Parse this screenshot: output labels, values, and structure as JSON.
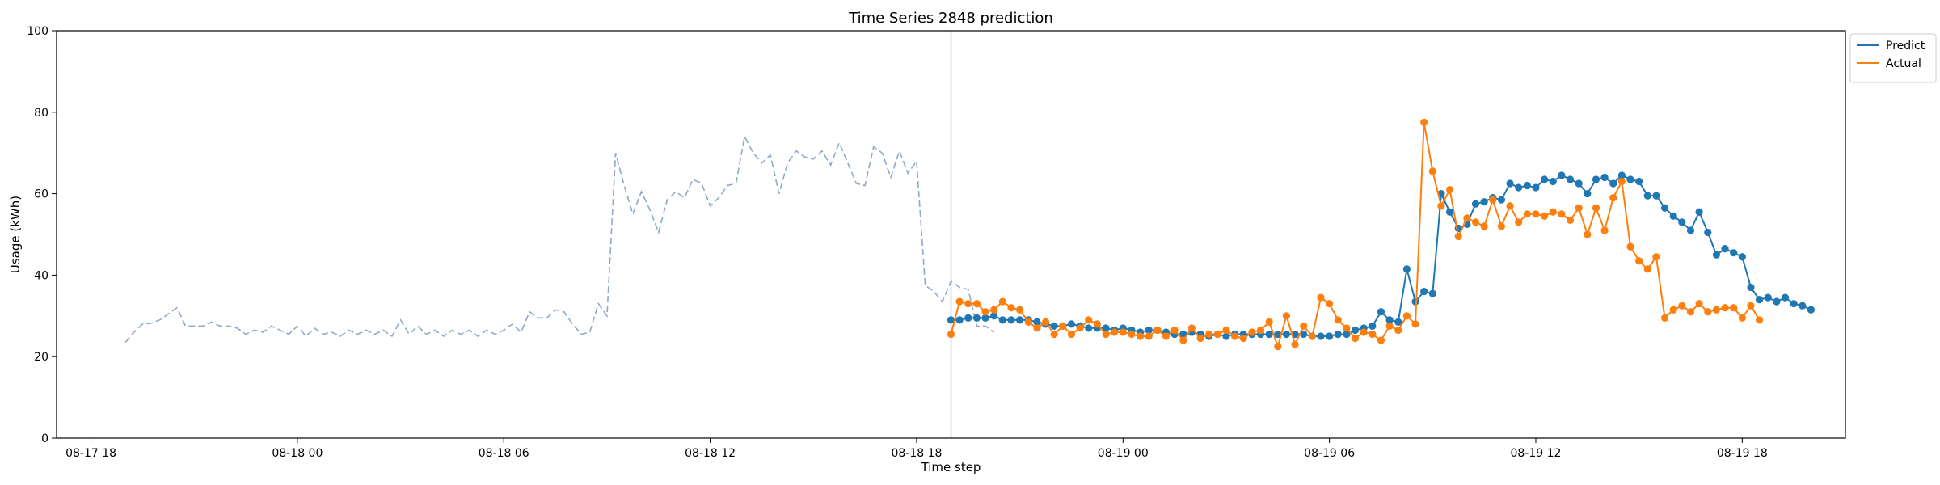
{
  "chart_data": {
    "type": "line",
    "title": "Time Series 2848 prediction",
    "xlabel": "Time step",
    "ylabel": "Usage (kWh)",
    "ylim": [
      0,
      100
    ],
    "yticks": [
      0,
      20,
      40,
      60,
      80,
      100
    ],
    "xlim": [
      "2025-08-17 17:00",
      "2025-08-19 21:00"
    ],
    "xticks": [
      {
        "t": "2025-08-17 18:00",
        "label": "08-17 18"
      },
      {
        "t": "2025-08-18 00:00",
        "label": "08-18 00"
      },
      {
        "t": "2025-08-18 06:00",
        "label": "08-18 06"
      },
      {
        "t": "2025-08-18 12:00",
        "label": "08-18 12"
      },
      {
        "t": "2025-08-18 18:00",
        "label": "08-18 18"
      },
      {
        "t": "2025-08-19 00:00",
        "label": "08-19 00"
      },
      {
        "t": "2025-08-19 06:00",
        "label": "08-19 06"
      },
      {
        "t": "2025-08-19 12:00",
        "label": "08-19 12"
      },
      {
        "t": "2025-08-19 18:00",
        "label": "08-19 18"
      }
    ],
    "forecast_start": "2025-08-18 19:00",
    "grid": false,
    "legend_position": "upper-right-outside",
    "series": [
      {
        "role": "history",
        "style": "dashed",
        "color": "#8fa9c8",
        "start": "2025-08-17 19:00",
        "step_minutes": 15,
        "values": [
          23.5,
          26.0,
          28.0,
          28.2,
          29.0,
          30.5,
          32.0,
          27.5,
          27.5,
          27.5,
          28.5,
          27.5,
          27.5,
          27.0,
          25.5,
          26.5,
          26.0,
          27.5,
          26.5,
          25.5,
          27.5,
          25.0,
          27.0,
          25.5,
          26.0,
          25.0,
          26.5,
          25.5,
          26.5,
          25.5,
          26.5,
          25.0,
          29.0,
          25.5,
          27.5,
          25.5,
          26.5,
          25.0,
          26.5,
          25.5,
          26.5,
          25.0,
          26.5,
          25.5,
          26.5,
          28.0,
          26.0,
          31.0,
          29.5,
          29.5,
          31.5,
          31.0,
          28.0,
          25.5,
          26.0,
          33.0,
          30.0,
          70.0,
          62.0,
          55.0,
          60.5,
          56.0,
          50.5,
          58.5,
          60.5,
          59.0,
          63.5,
          62.5,
          57.0,
          59.0,
          62.0,
          62.5,
          74.0,
          70.0,
          67.5,
          69.5,
          60.0,
          67.5,
          70.5,
          69.0,
          68.5,
          70.5,
          67.0,
          72.5,
          67.5,
          62.5,
          62.0,
          71.5,
          70.0,
          64.0,
          70.5,
          65.0,
          68.0,
          37.5,
          36.0,
          33.5,
          38.5,
          37.0,
          36.5,
          27.5,
          27.5,
          26.0
        ]
      },
      {
        "name": "Predict",
        "color": "#1f77b4",
        "marker": "circle",
        "start": "2025-08-18 19:00",
        "step_minutes": 15,
        "values": [
          29.0,
          29.0,
          29.5,
          29.5,
          29.5,
          30.0,
          29.0,
          29.0,
          29.0,
          29.0,
          28.5,
          28.0,
          27.5,
          27.5,
          28.0,
          27.5,
          27.0,
          27.0,
          27.0,
          26.5,
          27.0,
          26.5,
          26.0,
          26.5,
          26.5,
          26.0,
          25.5,
          25.5,
          26.0,
          25.5,
          25.0,
          25.5,
          25.0,
          25.5,
          25.5,
          25.5,
          25.5,
          25.5,
          25.5,
          25.5,
          25.5,
          25.5,
          25.0,
          25.0,
          25.0,
          25.5,
          25.5,
          26.5,
          27.0,
          27.5,
          31.0,
          29.0,
          28.5,
          41.5,
          33.5,
          36.0,
          35.5,
          60.0,
          55.5,
          51.5,
          52.5,
          57.5,
          58.0,
          59.0,
          58.5,
          62.5,
          61.5,
          62.0,
          61.5,
          63.5,
          63.0,
          64.5,
          63.5,
          62.5,
          60.0,
          63.5,
          64.0,
          62.5,
          64.5,
          63.5,
          63.0,
          59.5,
          59.5,
          56.5,
          54.5,
          53.0,
          51.0,
          55.5,
          50.5,
          45.0,
          46.5,
          45.5,
          44.5,
          37.0,
          34.0,
          34.5,
          33.5,
          34.5,
          33.0,
          32.5,
          31.5
        ]
      },
      {
        "name": "Actual",
        "color": "#ff7f0e",
        "marker": "circle",
        "start": "2025-08-18 19:00",
        "step_minutes": 15,
        "values": [
          25.5,
          33.5,
          33.0,
          33.0,
          31.0,
          31.5,
          33.5,
          32.0,
          31.5,
          28.5,
          27.0,
          28.5,
          25.5,
          27.5,
          25.5,
          27.0,
          29.0,
          28.0,
          25.5,
          26.0,
          26.0,
          25.5,
          25.0,
          25.0,
          26.5,
          25.0,
          26.5,
          24.0,
          27.0,
          24.5,
          25.5,
          25.5,
          26.5,
          25.0,
          24.5,
          26.0,
          26.5,
          28.5,
          22.5,
          30.0,
          23.0,
          27.5,
          25.0,
          34.5,
          33.0,
          29.0,
          27.0,
          24.5,
          26.0,
          25.5,
          24.0,
          27.5,
          26.5,
          30.0,
          28.0,
          77.5,
          65.5,
          57.0,
          61.0,
          49.5,
          54.0,
          53.0,
          52.0,
          58.5,
          52.0,
          57.0,
          53.0,
          55.0,
          55.0,
          54.5,
          55.5,
          55.0,
          53.5,
          56.5,
          50.0,
          56.5,
          51.0,
          59.0,
          63.0,
          47.0,
          43.5,
          41.5,
          44.5,
          29.5,
          31.5,
          32.5,
          31.0,
          33.0,
          31.0,
          31.5,
          32.0,
          32.0,
          29.5,
          32.5,
          29.0
        ]
      }
    ]
  }
}
